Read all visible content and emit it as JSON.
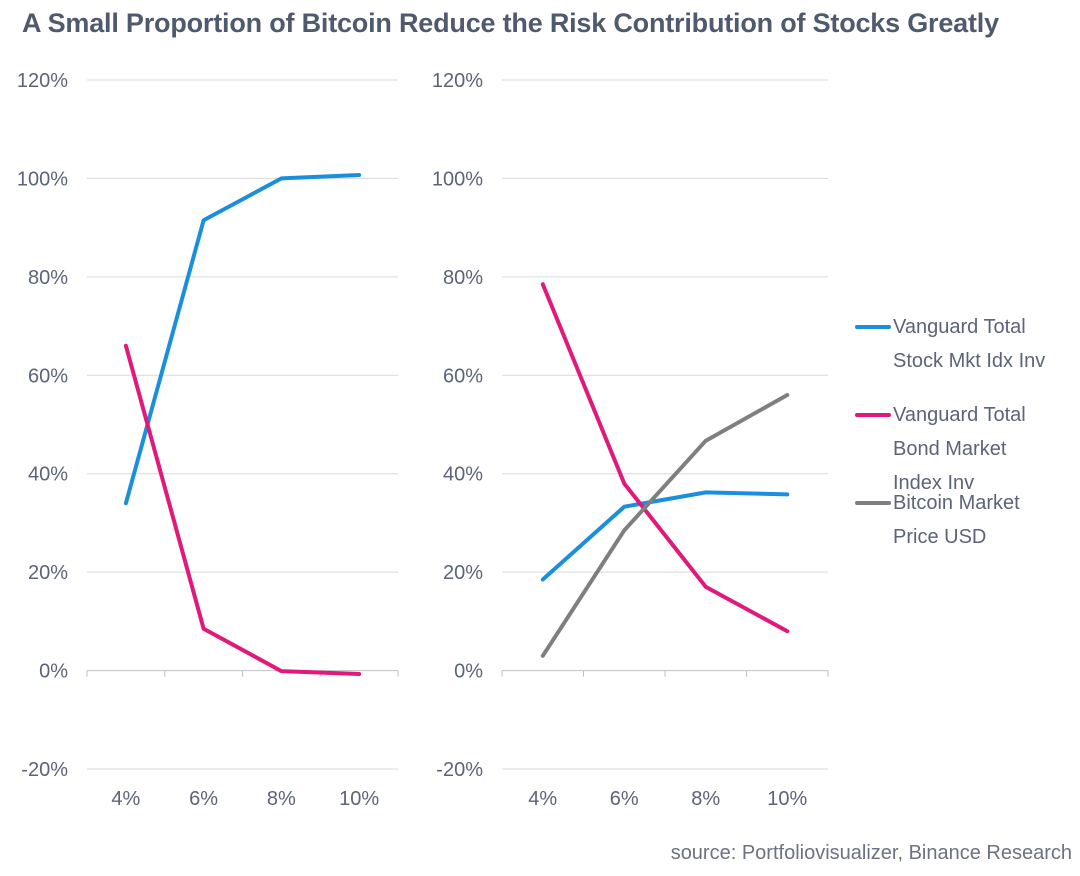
{
  "title": "A Small Proportion of Bitcoin Reduce the Risk Contribution of Stocks Greatly",
  "source": "source: Portfoliovisualizer, Binance Research",
  "colors": {
    "stock": "#1b8fdc",
    "bond": "#e0197b",
    "bitcoin": "#7f7f7f",
    "grid": "#d9d9d9",
    "axis_text": "#5b6478"
  },
  "chart_data": [
    {
      "type": "line",
      "categories": [
        "4%",
        "6%",
        "8%",
        "10%"
      ],
      "ylim": [
        -0.2,
        1.2
      ],
      "yticks": [
        "-20%",
        "0%",
        "20%",
        "40%",
        "60%",
        "80%",
        "100%",
        "120%"
      ],
      "grid": "horizontal",
      "series": [
        {
          "key": "stock",
          "name": "Vanguard Total Stock Mkt Idx Inv",
          "values": [
            0.34,
            0.915,
            1.0,
            1.007
          ]
        },
        {
          "key": "bond",
          "name": "Vanguard Total Bond Market Index Inv",
          "values": [
            0.66,
            0.085,
            -0.001,
            -0.007
          ]
        }
      ]
    },
    {
      "type": "line",
      "categories": [
        "4%",
        "6%",
        "8%",
        "10%"
      ],
      "ylim": [
        -0.2,
        1.2
      ],
      "yticks": [
        "-20%",
        "0%",
        "20%",
        "40%",
        "60%",
        "80%",
        "100%",
        "120%"
      ],
      "grid": "horizontal",
      "legend_position": "right",
      "series": [
        {
          "key": "stock",
          "name": "Vanguard Total Stock Mkt Idx Inv",
          "values": [
            0.185,
            0.333,
            0.362,
            0.358
          ]
        },
        {
          "key": "bond",
          "name": "Vanguard Total Bond Market Index Inv",
          "values": [
            0.785,
            0.38,
            0.17,
            0.08
          ]
        },
        {
          "key": "bitcoin",
          "name": "Bitcoin Market Price USD",
          "values": [
            0.03,
            0.285,
            0.467,
            0.56
          ]
        }
      ]
    }
  ],
  "legend": [
    {
      "key": "stock",
      "line1": "Vanguard Total",
      "line2": "Stock Mkt Idx Inv"
    },
    {
      "key": "bond",
      "line1": "Vanguard Total",
      "line2": "Bond Market",
      "line3": "Index Inv"
    },
    {
      "key": "bitcoin",
      "line1": "Bitcoin Market",
      "line2": "Price USD"
    }
  ]
}
